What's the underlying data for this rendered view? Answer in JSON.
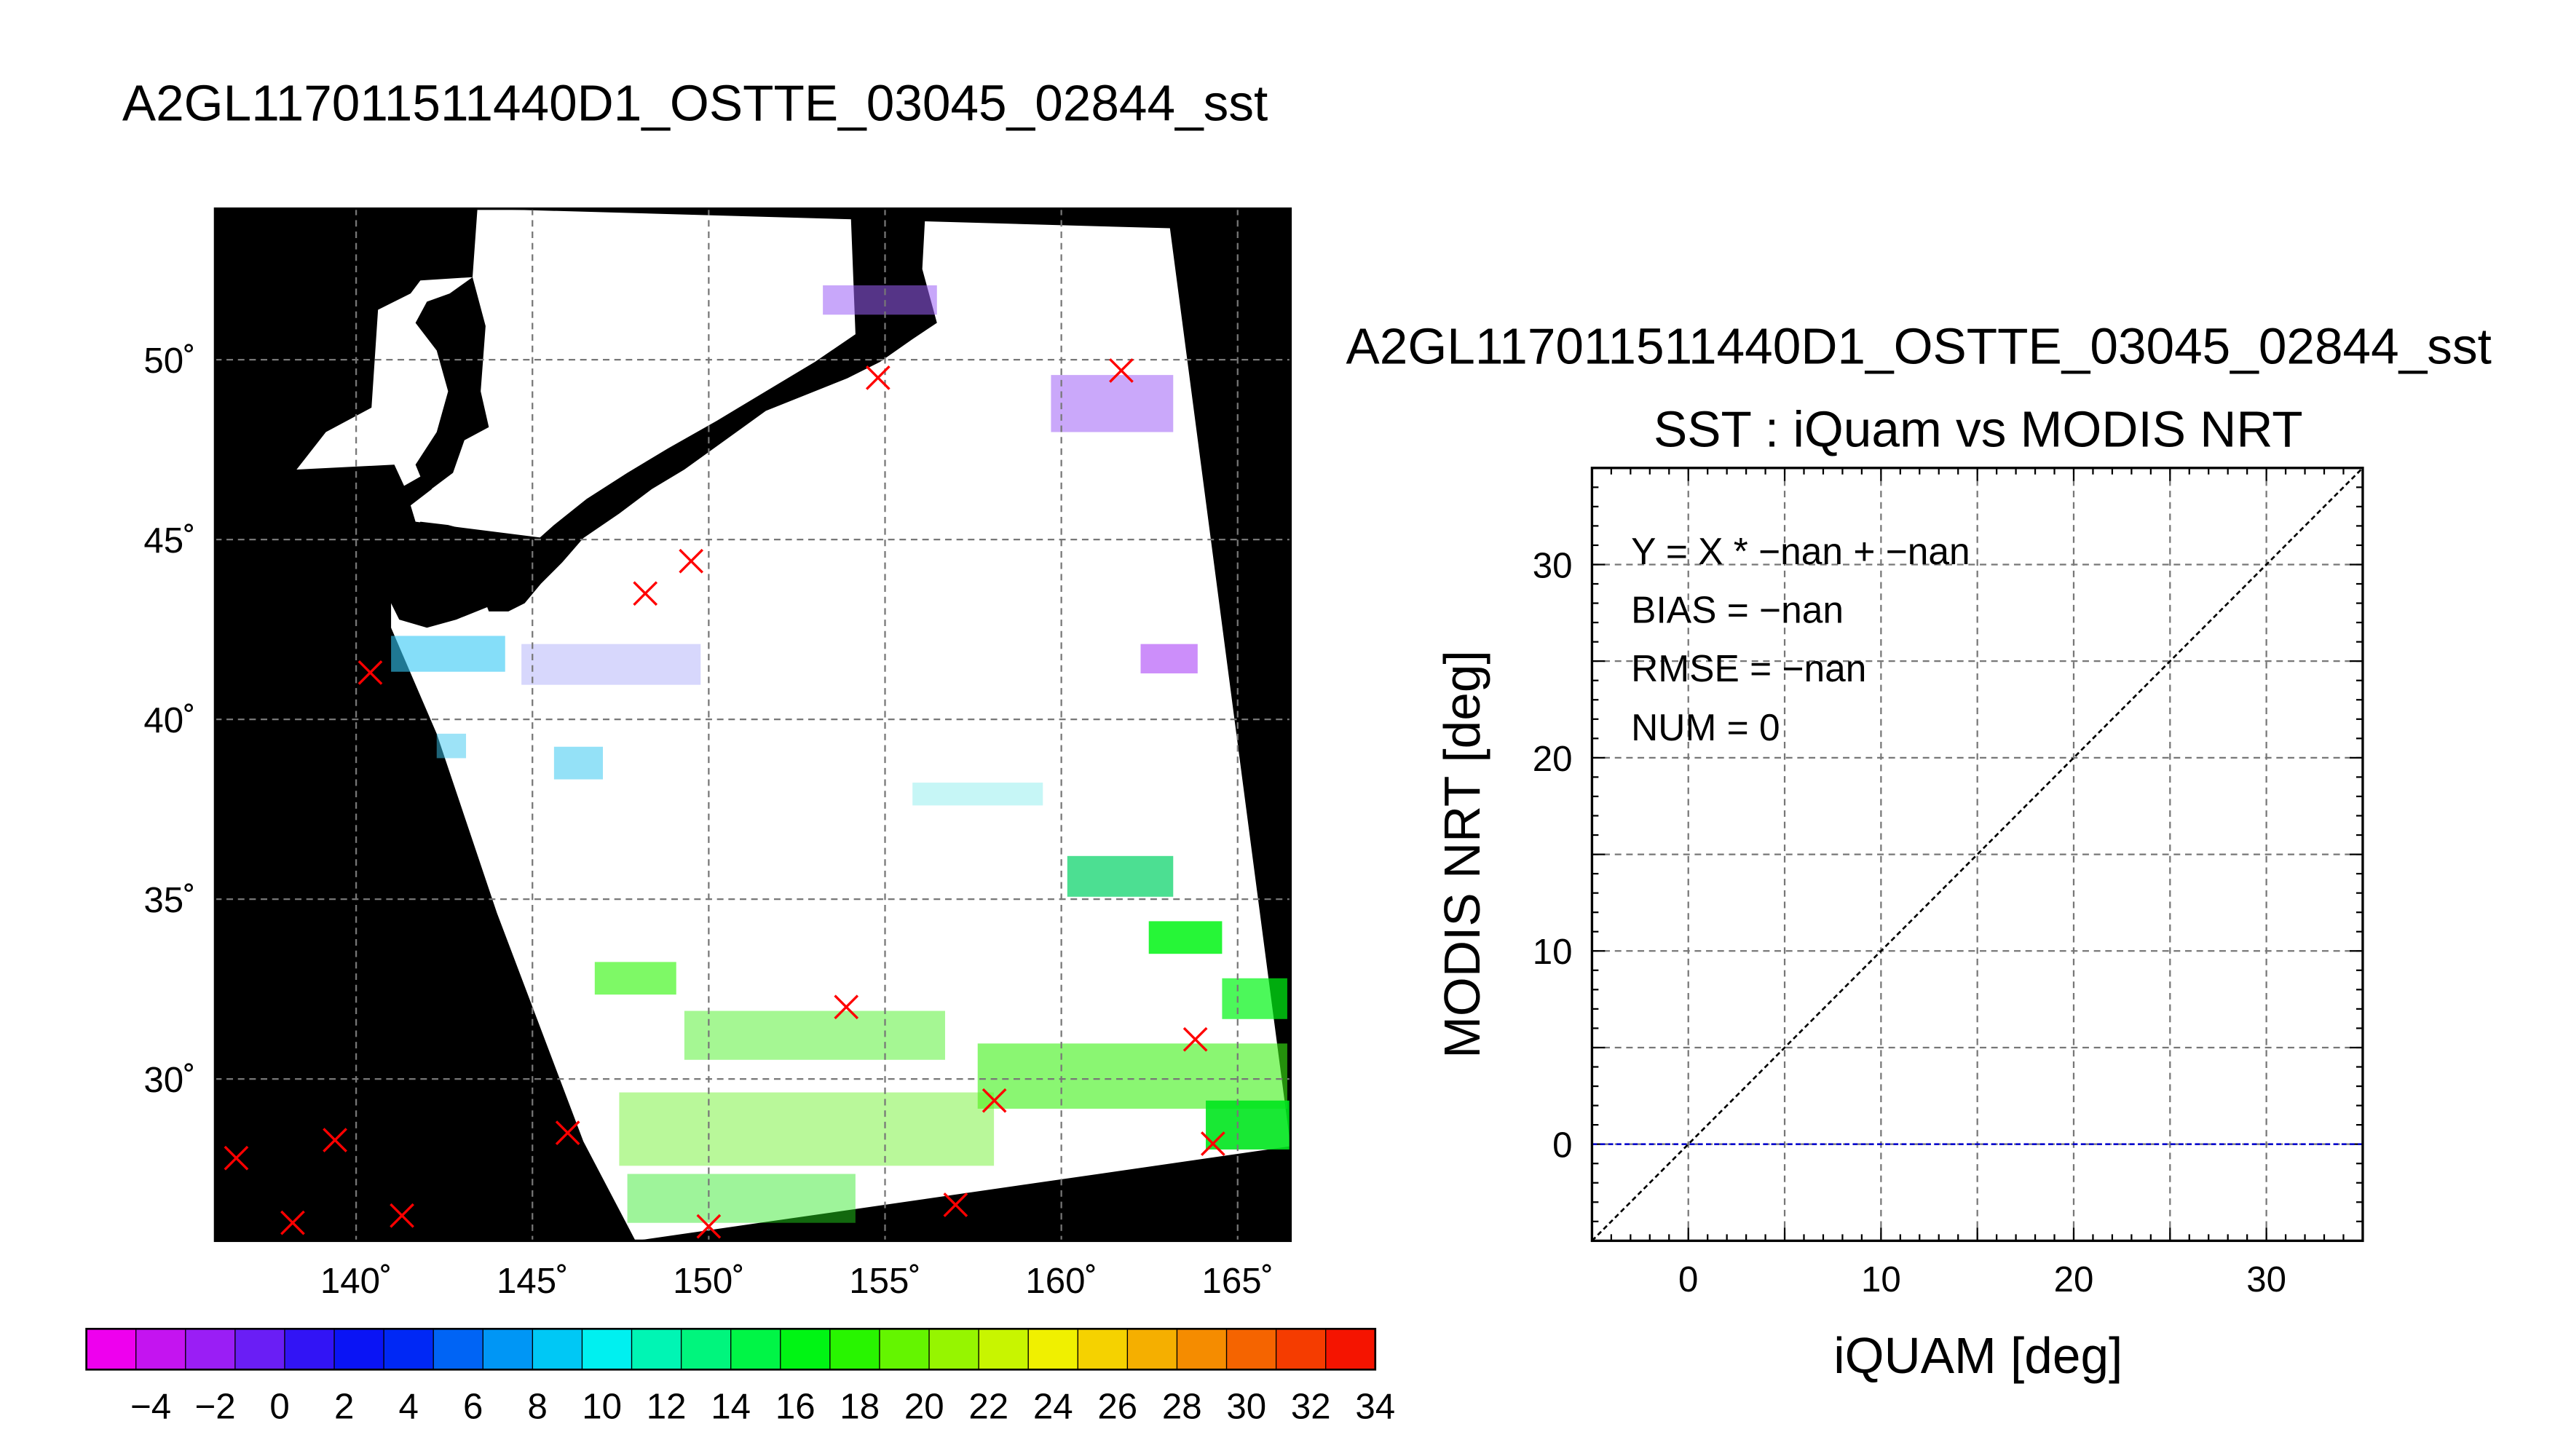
{
  "figure": {
    "title_left": "A2GL117011511440D1_OSTTE_03045_02844_sst",
    "title_right": "A2GL117011511440D1_OSTTE_03045_02844_sst"
  },
  "chart_data": [
    {
      "type": "scatter",
      "subtype": "map",
      "lon_ticks": [
        "140˚",
        "145˚",
        "150˚",
        "155˚",
        "160˚",
        "165˚"
      ],
      "lat_ticks": [
        "30˚",
        "35˚",
        "40˚",
        "45˚",
        "50˚"
      ],
      "lon_range": [
        136.0,
        166.5
      ],
      "lat_range": [
        25.5,
        54.2
      ],
      "grid": true,
      "markers": [
        {
          "lon": 154.8,
          "lat": 49.5
        },
        {
          "lon": 161.7,
          "lat": 49.7
        },
        {
          "lon": 149.5,
          "lat": 44.4
        },
        {
          "lon": 148.2,
          "lat": 43.5
        },
        {
          "lon": 140.4,
          "lat": 41.3
        },
        {
          "lon": 153.9,
          "lat": 32.0
        },
        {
          "lon": 163.8,
          "lat": 31.1
        },
        {
          "lon": 158.1,
          "lat": 29.4
        },
        {
          "lon": 164.3,
          "lat": 28.2
        },
        {
          "lon": 146.0,
          "lat": 28.5
        },
        {
          "lon": 139.4,
          "lat": 28.3
        },
        {
          "lon": 136.6,
          "lat": 27.8
        },
        {
          "lon": 138.2,
          "lat": 26.0
        },
        {
          "lon": 141.3,
          "lat": 26.2
        },
        {
          "lon": 150.0,
          "lat": 25.9
        },
        {
          "lon": 157.0,
          "lat": 26.5
        }
      ],
      "marker_color": "#ff0000"
    },
    {
      "type": "bar",
      "subtype": "colorbar",
      "tick_labels": [
        "−4",
        "−2",
        "0",
        "2",
        "4",
        "6",
        "8",
        "10",
        "12",
        "14",
        "16",
        "18",
        "20",
        "22",
        "24",
        "26",
        "28",
        "30",
        "32",
        "34"
      ],
      "range": [
        -6,
        34
      ],
      "colors": [
        "#ee00ee",
        "#c414f0",
        "#9a1ef5",
        "#6a1ef5",
        "#3214f5",
        "#0a14f5",
        "#0028f5",
        "#0064f5",
        "#0096f5",
        "#00c8f5",
        "#00f0f0",
        "#00f5b4",
        "#00f57d",
        "#00f546",
        "#00f514",
        "#28f500",
        "#64f500",
        "#96f500",
        "#c8f500",
        "#f0f000",
        "#f5d200",
        "#f5af00",
        "#f58c00",
        "#f56400",
        "#f53c00",
        "#f51400"
      ]
    },
    {
      "type": "scatter",
      "title": "SST : iQuam vs MODIS NRT",
      "xlabel": "iQUAM [deg]",
      "ylabel": "MODIS NRT [deg]",
      "xlim": [
        -5,
        35
      ],
      "ylim": [
        -5,
        35
      ],
      "xticks": [
        "0",
        "10",
        "20",
        "30"
      ],
      "yticks": [
        "0",
        "10",
        "20",
        "30"
      ],
      "grid": true,
      "stats": [
        "Y = X * −nan + −nan",
        "BIAS = −nan",
        "RMSE = −nan",
        "NUM = 0"
      ],
      "reference_line": {
        "x": [
          -5,
          35
        ],
        "y": [
          -5,
          35
        ]
      },
      "fit_line": {
        "y": 0
      },
      "points": [],
      "fit_color": "#0000cc"
    }
  ]
}
